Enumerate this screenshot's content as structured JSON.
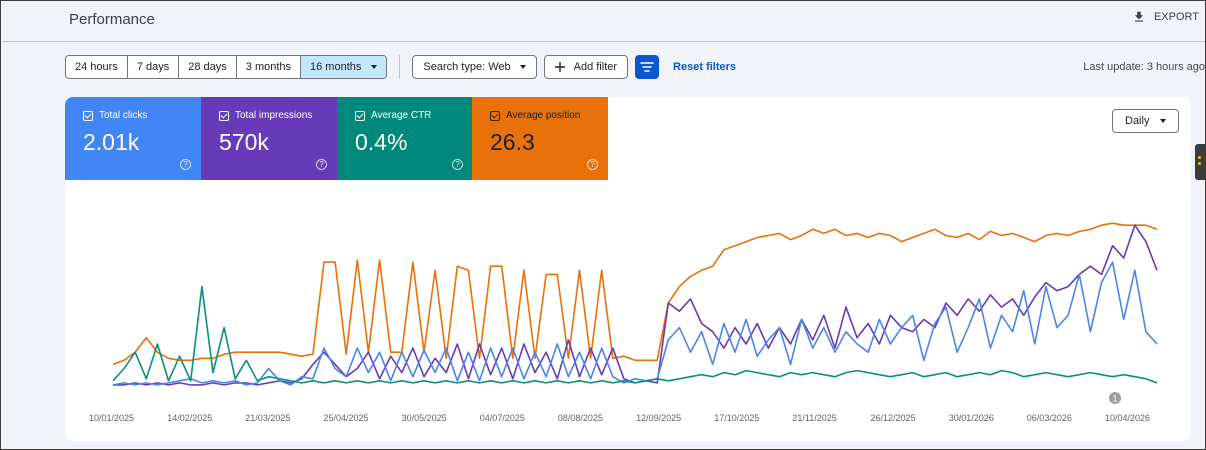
{
  "header": {
    "title": "Performance",
    "export_label": "EXPORT"
  },
  "filters": {
    "ranges": [
      "24 hours",
      "7 days",
      "28 days",
      "3 months",
      "16 months"
    ],
    "active_range": "16 months",
    "search_type": "Search type: Web",
    "add_filter": "Add filter",
    "reset": "Reset filters",
    "last_update": "Last update: 3 hours ago"
  },
  "metrics": [
    {
      "label": "Total clicks",
      "value": "2.01k",
      "color": "#4285f4"
    },
    {
      "label": "Total impressions",
      "value": "570k",
      "color": "#673ab7"
    },
    {
      "label": "Average CTR",
      "value": "0.4%",
      "color": "#00897b"
    },
    {
      "label": "Average position",
      "value": "26.3",
      "color": "#e8710a"
    }
  ],
  "granularity": "Daily",
  "annotation_badge": "1",
  "chart_data": {
    "type": "line",
    "x_tick_labels": [
      "10/01/2025",
      "14/02/2025",
      "21/03/2025",
      "25/04/2025",
      "30/05/2025",
      "04/07/2025",
      "08/08/2025",
      "12/09/2025",
      "17/10/2025",
      "21/11/2025",
      "26/12/2025",
      "30/01/2026",
      "06/03/2026",
      "10/04/2026"
    ],
    "x_range": [
      "2025-01-01",
      "2026-05-01"
    ],
    "series": [
      {
        "color": "#e8710a",
        "metric": "Average position",
        "values": [
          0.12,
          0.14,
          0.18,
          0.25,
          0.18,
          0.15,
          0.14,
          0.14,
          0.15,
          0.15,
          0.17,
          0.18,
          0.18,
          0.18,
          0.18,
          0.18,
          0.17,
          0.16,
          0.17,
          0.62,
          0.62,
          0.17,
          0.63,
          0.18,
          0.63,
          0.18,
          0.18,
          0.62,
          0.18,
          0.58,
          0.15,
          0.6,
          0.58,
          0.15,
          0.6,
          0.6,
          0.15,
          0.58,
          0.15,
          0.56,
          0.56,
          0.15,
          0.58,
          0.15,
          0.58,
          0.15,
          0.16,
          0.14,
          0.14,
          0.14,
          0.42,
          0.5,
          0.55,
          0.58,
          0.6,
          0.68,
          0.7,
          0.72,
          0.74,
          0.75,
          0.76,
          0.73,
          0.75,
          0.78,
          0.76,
          0.78,
          0.75,
          0.76,
          0.74,
          0.76,
          0.75,
          0.72,
          0.74,
          0.76,
          0.78,
          0.75,
          0.74,
          0.76,
          0.73,
          0.77,
          0.75,
          0.76,
          0.74,
          0.72,
          0.75,
          0.76,
          0.75,
          0.77,
          0.78,
          0.8,
          0.81,
          0.8,
          0.8,
          0.8,
          0.78
        ]
      },
      {
        "color": "#673ab7",
        "metric": "Total impressions",
        "values": [
          0.02,
          0.02,
          0.03,
          0.02,
          0.03,
          0.02,
          0.03,
          0.02,
          0.02,
          0.03,
          0.02,
          0.03,
          0.03,
          0.02,
          0.03,
          0.04,
          0.03,
          0.05,
          0.12,
          0.18,
          0.12,
          0.06,
          0.1,
          0.18,
          0.05,
          0.16,
          0.08,
          0.2,
          0.06,
          0.15,
          0.08,
          0.22,
          0.05,
          0.22,
          0.07,
          0.2,
          0.05,
          0.22,
          0.08,
          0.18,
          0.05,
          0.24,
          0.06,
          0.2,
          0.07,
          0.2,
          0.05,
          0.03,
          0.04,
          0.03,
          0.42,
          0.38,
          0.44,
          0.32,
          0.28,
          0.2,
          0.3,
          0.22,
          0.32,
          0.2,
          0.3,
          0.22,
          0.34,
          0.24,
          0.36,
          0.2,
          0.4,
          0.25,
          0.32,
          0.22,
          0.36,
          0.3,
          0.28,
          0.34,
          0.3,
          0.42,
          0.36,
          0.44,
          0.38,
          0.46,
          0.4,
          0.44,
          0.36,
          0.45,
          0.52,
          0.48,
          0.5,
          0.56,
          0.6,
          0.56,
          0.7,
          0.64,
          0.8,
          0.72,
          0.58
        ]
      },
      {
        "color": "#4a86e8",
        "metric": "Total clicks",
        "values": [
          0.02,
          0.03,
          0.02,
          0.03,
          0.02,
          0.03,
          0.04,
          0.05,
          0.03,
          0.04,
          0.03,
          0.04,
          0.02,
          0.03,
          0.1,
          0.04,
          0.02,
          0.06,
          0.05,
          0.2,
          0.1,
          0.06,
          0.2,
          0.08,
          0.18,
          0.04,
          0.18,
          0.06,
          0.19,
          0.08,
          0.2,
          0.04,
          0.18,
          0.04,
          0.2,
          0.06,
          0.2,
          0.05,
          0.18,
          0.06,
          0.22,
          0.06,
          0.18,
          0.05,
          0.2,
          0.06,
          0.03,
          0.05,
          0.04,
          0.05,
          0.24,
          0.3,
          0.18,
          0.28,
          0.12,
          0.32,
          0.18,
          0.34,
          0.16,
          0.24,
          0.3,
          0.12,
          0.34,
          0.2,
          0.3,
          0.18,
          0.28,
          0.22,
          0.18,
          0.34,
          0.22,
          0.3,
          0.36,
          0.14,
          0.32,
          0.4,
          0.18,
          0.3,
          0.44,
          0.2,
          0.36,
          0.28,
          0.48,
          0.22,
          0.5,
          0.3,
          0.36,
          0.56,
          0.28,
          0.52,
          0.62,
          0.34,
          0.58,
          0.28,
          0.22
        ]
      },
      {
        "color": "#0a8f7f",
        "metric": "Average CTR",
        "values": [
          0.04,
          0.1,
          0.18,
          0.05,
          0.22,
          0.04,
          0.16,
          0.04,
          0.5,
          0.08,
          0.3,
          0.05,
          0.14,
          0.04,
          0.06,
          0.05,
          0.04,
          0.03,
          0.04,
          0.03,
          0.04,
          0.03,
          0.04,
          0.03,
          0.04,
          0.03,
          0.04,
          0.03,
          0.04,
          0.03,
          0.04,
          0.03,
          0.04,
          0.03,
          0.04,
          0.03,
          0.04,
          0.03,
          0.04,
          0.03,
          0.04,
          0.03,
          0.04,
          0.03,
          0.04,
          0.03,
          0.04,
          0.03,
          0.04,
          0.05,
          0.04,
          0.05,
          0.06,
          0.07,
          0.06,
          0.08,
          0.07,
          0.09,
          0.08,
          0.07,
          0.06,
          0.08,
          0.07,
          0.08,
          0.07,
          0.06,
          0.08,
          0.09,
          0.08,
          0.07,
          0.06,
          0.07,
          0.08,
          0.06,
          0.07,
          0.08,
          0.06,
          0.07,
          0.08,
          0.07,
          0.09,
          0.08,
          0.06,
          0.07,
          0.08,
          0.07,
          0.06,
          0.07,
          0.08,
          0.07,
          0.06,
          0.07,
          0.06,
          0.05,
          0.03
        ]
      }
    ]
  }
}
